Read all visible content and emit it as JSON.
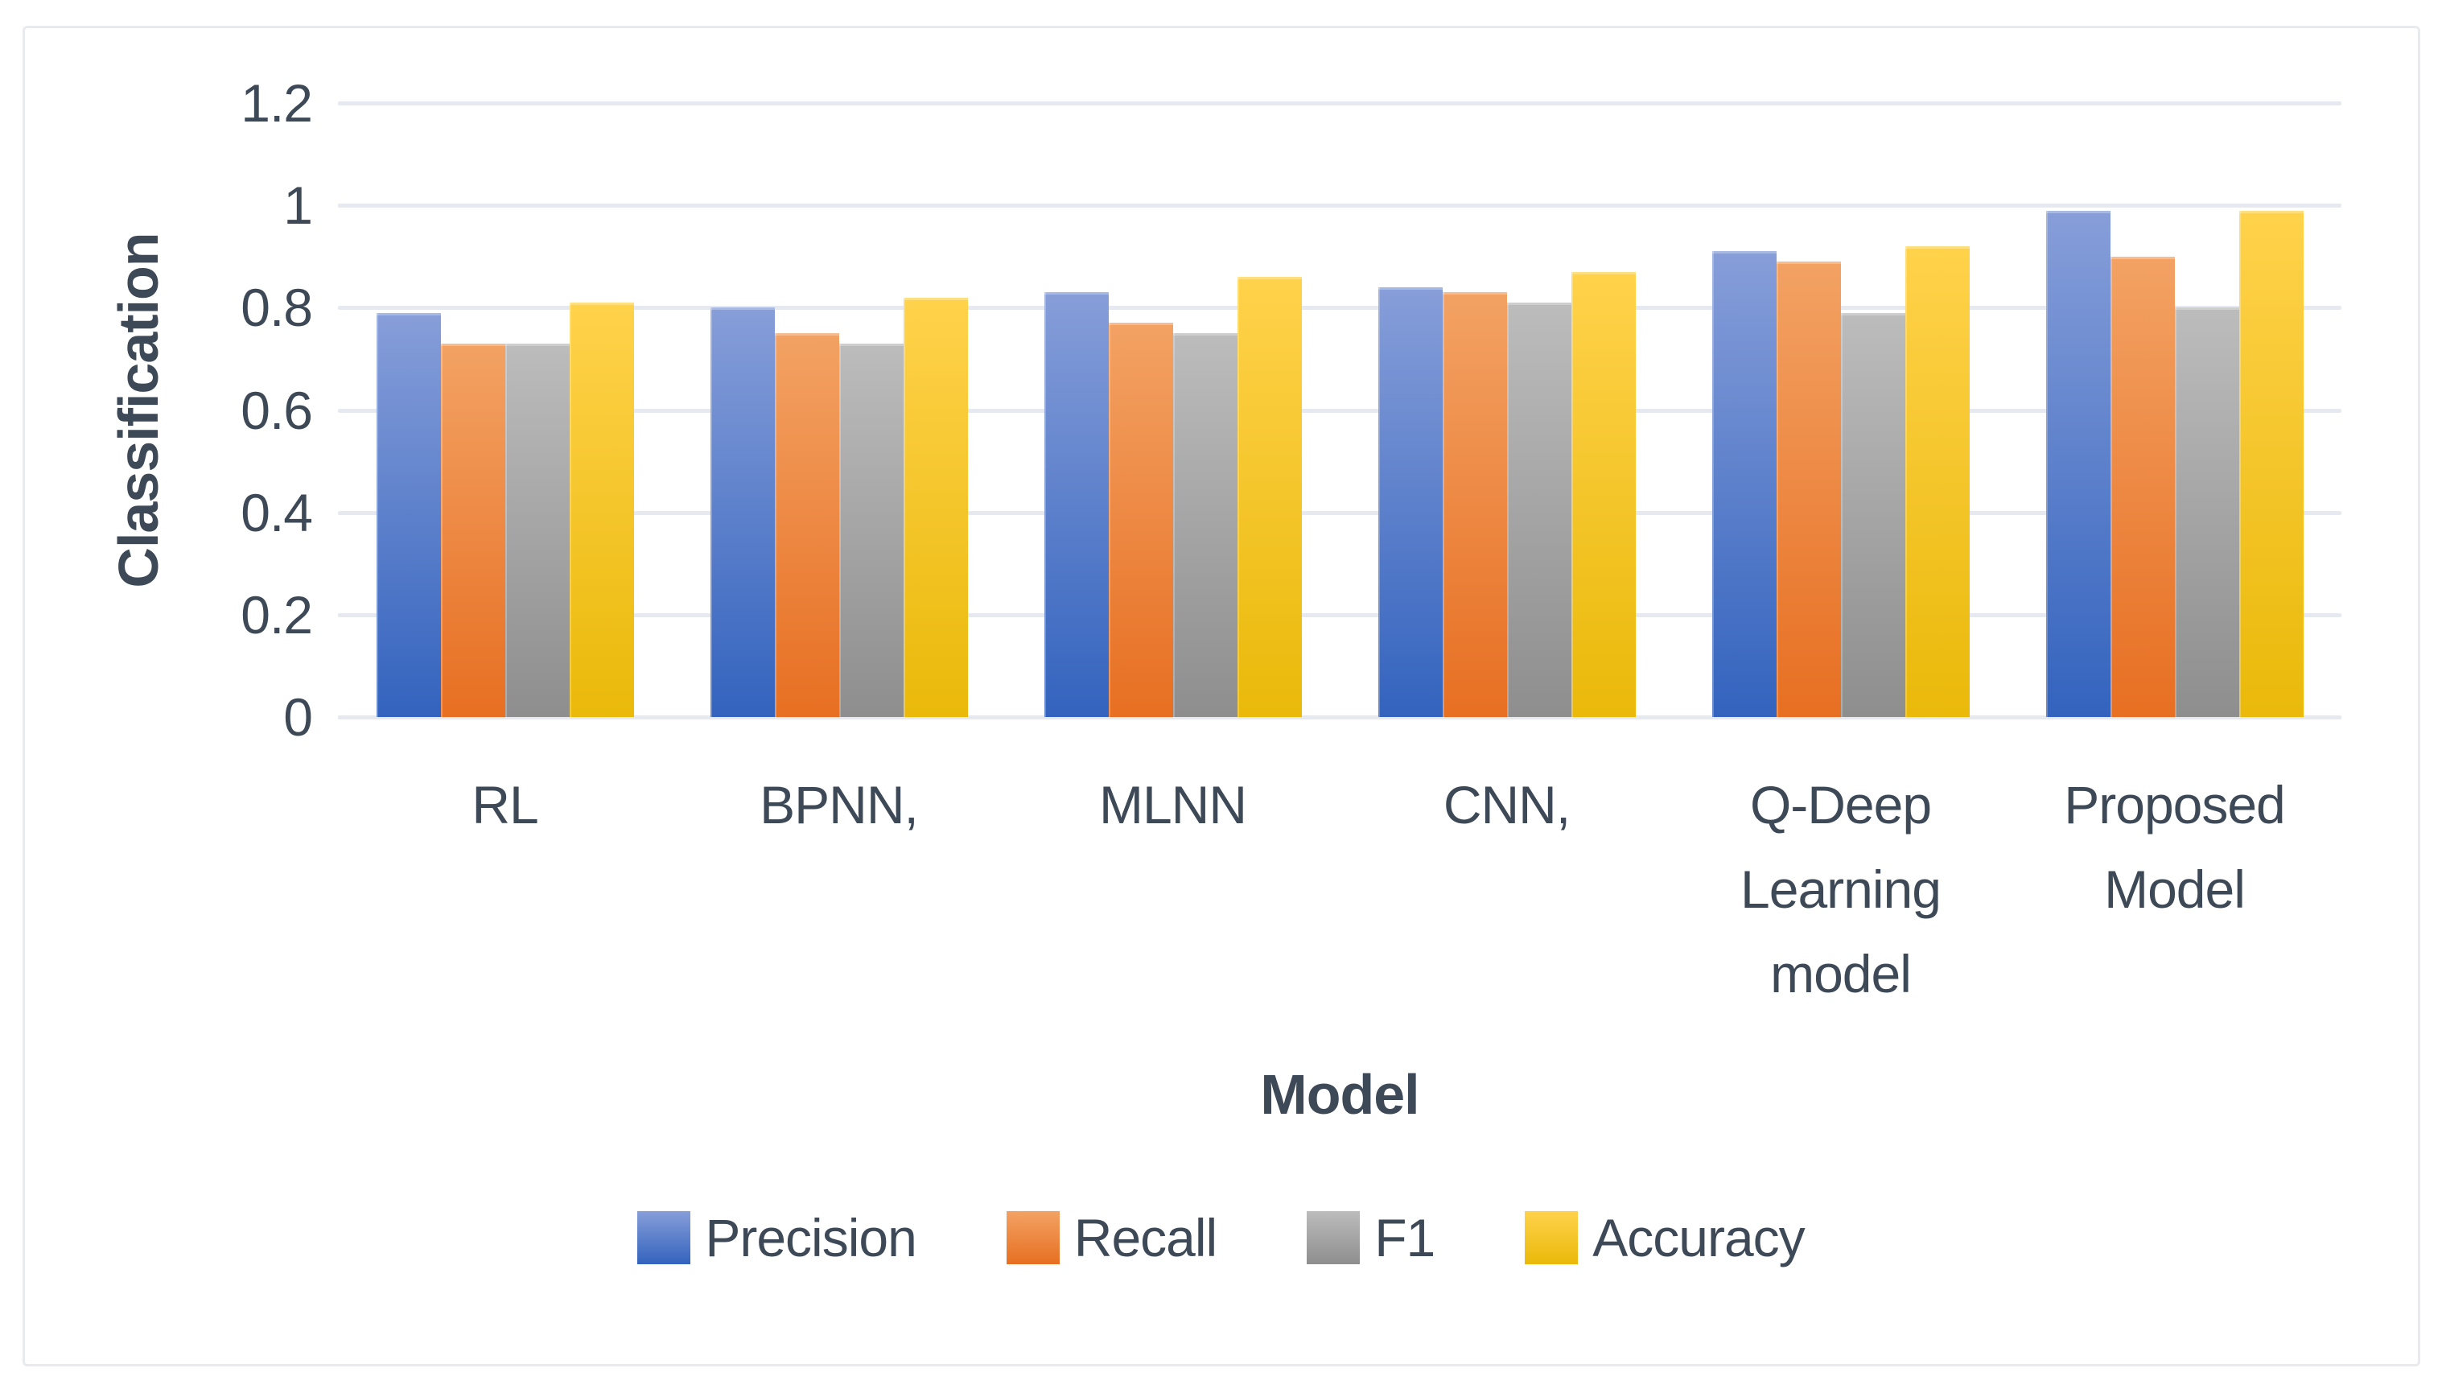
{
  "figure": {
    "background_color": "#ffffff",
    "frame_border_color": "#e8eaee",
    "gridline_color": "#e6e9ef",
    "text_color": "#3e4957"
  },
  "chart_data": {
    "type": "bar",
    "title": "",
    "xlabel": "Model",
    "ylabel": "Classification",
    "categories": [
      "RL",
      "BPNN,",
      "MLNN",
      "CNN,",
      "Q-Deep Learning model",
      "Proposed Model"
    ],
    "series": [
      {
        "name": "Precision",
        "color": "#4472c4",
        "fill_top": "#879ed9",
        "fill_bottom": "#3363be",
        "values": [
          0.79,
          0.8,
          0.83,
          0.84,
          0.91,
          0.99
        ]
      },
      {
        "name": "Recall",
        "color": "#ed7d31",
        "fill_top": "#f3a264",
        "fill_bottom": "#e76f22",
        "values": [
          0.73,
          0.75,
          0.77,
          0.83,
          0.89,
          0.9
        ]
      },
      {
        "name": "F1",
        "color": "#a5a5a5",
        "fill_top": "#bcbcbc",
        "fill_bottom": "#8e8e8e",
        "values": [
          0.73,
          0.73,
          0.75,
          0.81,
          0.79,
          0.8
        ]
      },
      {
        "name": "Accuracy",
        "color": "#ffc000",
        "fill_top": "#ffd24b",
        "fill_bottom": "#eab90a",
        "values": [
          0.81,
          0.82,
          0.86,
          0.87,
          0.92,
          0.99
        ]
      }
    ],
    "ylim": [
      0,
      1.2
    ],
    "yticks": [
      0,
      0.2,
      0.4,
      0.6,
      0.8,
      1,
      1.2
    ],
    "ytick_labels": [
      "0",
      "0.2",
      "0.4",
      "0.6",
      "0.8",
      "1",
      "1.2"
    ],
    "grid": true,
    "legend_position": "bottom",
    "legend_entries": [
      "Precision",
      "Recall",
      "F1",
      "Accuracy"
    ]
  }
}
